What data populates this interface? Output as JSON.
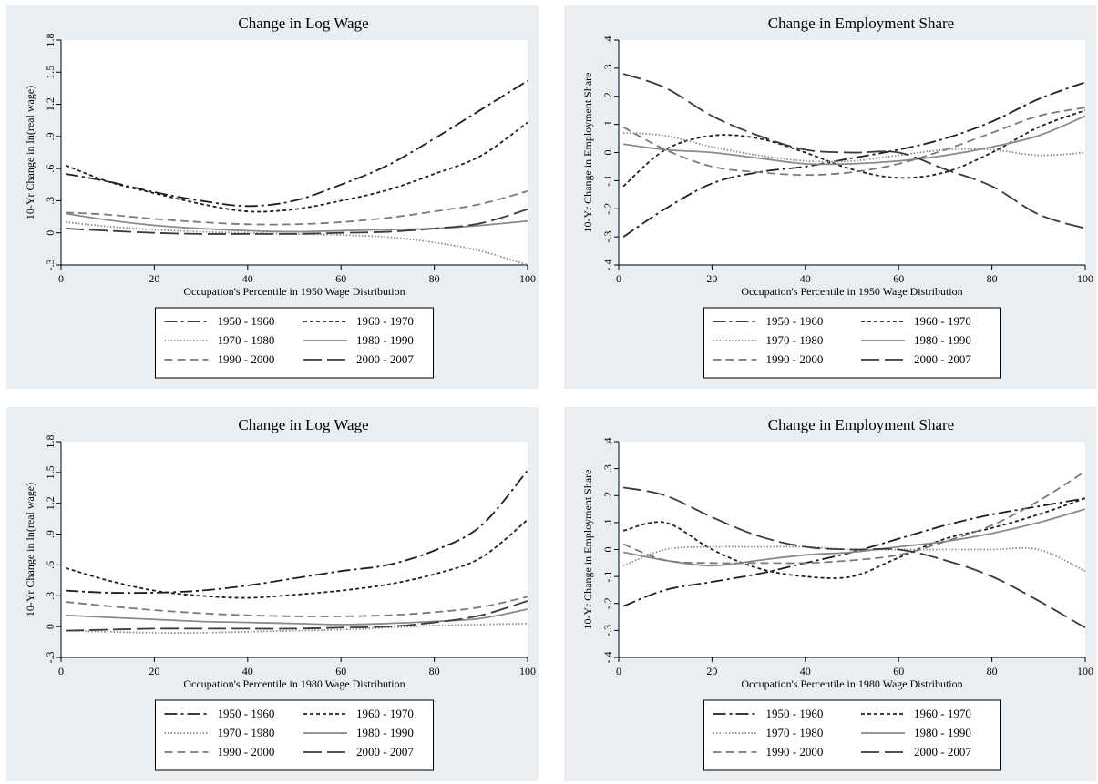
{
  "chart_data": [
    {
      "type": "line",
      "title": "Change in Log Wage",
      "xlabel": "Occupation's Percentile in 1950 Wage Distribution",
      "ylabel": "10-Yr Change in ln(real wage)",
      "xlim": [
        0,
        100
      ],
      "ylim": [
        -0.3,
        1.8
      ],
      "xticks": [
        0,
        20,
        40,
        60,
        80,
        100
      ],
      "xtick_labels": [
        "0",
        "20",
        "40",
        "60",
        "80",
        "100"
      ],
      "yticks": [
        -0.3,
        0,
        0.3,
        0.6,
        0.9,
        1.2,
        1.5,
        1.8
      ],
      "ytick_labels": [
        "-.3",
        "0",
        ".3",
        ".6",
        ".9",
        "1.2",
        "1.5",
        "1.8"
      ],
      "grid": false,
      "legend": "bottom",
      "x": [
        1,
        10,
        20,
        30,
        40,
        50,
        60,
        70,
        80,
        90,
        100
      ],
      "series": [
        {
          "name": "1950 - 1960",
          "values": [
            0.55,
            0.48,
            0.38,
            0.3,
            0.25,
            0.3,
            0.45,
            0.63,
            0.88,
            1.15,
            1.42
          ]
        },
        {
          "name": "1960 - 1970",
          "values": [
            0.63,
            0.48,
            0.37,
            0.27,
            0.2,
            0.22,
            0.3,
            0.4,
            0.55,
            0.72,
            1.03
          ]
        },
        {
          "name": "1970 - 1980",
          "values": [
            0.1,
            0.06,
            0.03,
            0.01,
            0.0,
            -0.01,
            -0.02,
            -0.04,
            -0.09,
            -0.17,
            -0.3
          ]
        },
        {
          "name": "1980 - 1990",
          "values": [
            0.18,
            0.12,
            0.07,
            0.04,
            0.02,
            0.01,
            0.02,
            0.03,
            0.04,
            0.07,
            0.11
          ]
        },
        {
          "name": "1990 - 2000",
          "values": [
            0.19,
            0.17,
            0.13,
            0.1,
            0.08,
            0.08,
            0.1,
            0.14,
            0.2,
            0.27,
            0.39
          ]
        },
        {
          "name": "2000 - 2007",
          "values": [
            0.04,
            0.02,
            0.0,
            -0.01,
            -0.01,
            -0.01,
            0.0,
            0.01,
            0.04,
            0.09,
            0.22
          ]
        }
      ]
    },
    {
      "type": "line",
      "title": "Change in Employment Share",
      "xlabel": "Occupation's Percentile in 1950 Wage Distribution",
      "ylabel": "10-Yr Change in Employment Share",
      "xlim": [
        0,
        100
      ],
      "ylim": [
        -0.4,
        0.4
      ],
      "xticks": [
        0,
        20,
        40,
        60,
        80,
        100
      ],
      "xtick_labels": [
        "0",
        "20",
        "40",
        "60",
        "80",
        "100"
      ],
      "yticks": [
        -0.4,
        -0.3,
        -0.2,
        -0.1,
        0,
        0.1,
        0.2,
        0.3,
        0.4
      ],
      "ytick_labels": [
        "-.4",
        "-.3",
        "-.2",
        "-.1",
        "0",
        ".1",
        ".2",
        ".3",
        ".4"
      ],
      "grid": false,
      "legend": "bottom",
      "x": [
        1,
        10,
        20,
        30,
        40,
        50,
        60,
        70,
        80,
        90,
        100
      ],
      "series": [
        {
          "name": "1950 - 1960",
          "values": [
            -0.3,
            -0.2,
            -0.11,
            -0.07,
            -0.05,
            -0.02,
            0.01,
            0.05,
            0.11,
            0.19,
            0.25
          ]
        },
        {
          "name": "1960 - 1970",
          "values": [
            -0.12,
            0.01,
            0.06,
            0.05,
            0.0,
            -0.06,
            -0.09,
            -0.07,
            0.0,
            0.09,
            0.15
          ]
        },
        {
          "name": "1970 - 1980",
          "values": [
            0.07,
            0.06,
            0.02,
            -0.01,
            -0.03,
            -0.03,
            -0.01,
            0.01,
            0.01,
            -0.01,
            0.0
          ]
        },
        {
          "name": "1980 - 1990",
          "values": [
            0.03,
            0.01,
            0.0,
            -0.02,
            -0.04,
            -0.04,
            -0.03,
            -0.01,
            0.02,
            0.06,
            0.13
          ]
        },
        {
          "name": "1990 - 2000",
          "values": [
            0.09,
            0.01,
            -0.05,
            -0.07,
            -0.08,
            -0.07,
            -0.04,
            0.01,
            0.07,
            0.13,
            0.16
          ]
        },
        {
          "name": "2000 - 2007",
          "values": [
            0.28,
            0.23,
            0.13,
            0.06,
            0.01,
            0.0,
            0.0,
            -0.06,
            -0.12,
            -0.22,
            -0.27
          ]
        }
      ]
    },
    {
      "type": "line",
      "title": "Change in Log Wage",
      "xlabel": "Occupation's Percentile in 1980 Wage Distribution",
      "ylabel": "10-Yr Change in ln(real wage)",
      "xlim": [
        0,
        100
      ],
      "ylim": [
        -0.3,
        1.8
      ],
      "xticks": [
        0,
        20,
        40,
        60,
        80,
        100
      ],
      "xtick_labels": [
        "0",
        "20",
        "40",
        "60",
        "80",
        "100"
      ],
      "yticks": [
        -0.3,
        0,
        0.3,
        0.6,
        0.9,
        1.2,
        1.5,
        1.8
      ],
      "ytick_labels": [
        "-.3",
        "0",
        ".3",
        ".6",
        ".9",
        "1.2",
        "1.5",
        "1.8"
      ],
      "grid": false,
      "legend": "bottom",
      "x": [
        1,
        10,
        20,
        30,
        40,
        50,
        60,
        70,
        80,
        90,
        100
      ],
      "series": [
        {
          "name": "1950 - 1960",
          "values": [
            0.35,
            0.33,
            0.33,
            0.35,
            0.4,
            0.47,
            0.54,
            0.6,
            0.74,
            0.98,
            1.52
          ]
        },
        {
          "name": "1960 - 1970",
          "values": [
            0.57,
            0.45,
            0.35,
            0.3,
            0.28,
            0.31,
            0.35,
            0.41,
            0.51,
            0.67,
            1.04
          ]
        },
        {
          "name": "1970 - 1980",
          "values": [
            -0.04,
            -0.05,
            -0.06,
            -0.06,
            -0.05,
            -0.04,
            -0.03,
            -0.01,
            0.01,
            0.02,
            0.03
          ]
        },
        {
          "name": "1980 - 1990",
          "values": [
            0.11,
            0.09,
            0.07,
            0.05,
            0.04,
            0.03,
            0.02,
            0.03,
            0.05,
            0.08,
            0.17
          ]
        },
        {
          "name": "1990 - 2000",
          "values": [
            0.24,
            0.2,
            0.16,
            0.13,
            0.11,
            0.1,
            0.1,
            0.11,
            0.14,
            0.19,
            0.29
          ]
        },
        {
          "name": "2000 - 2007",
          "values": [
            -0.04,
            -0.03,
            -0.02,
            -0.02,
            -0.02,
            -0.02,
            -0.01,
            0.0,
            0.04,
            0.11,
            0.25
          ]
        }
      ]
    },
    {
      "type": "line",
      "title": "Change in Employment Share",
      "xlabel": "Occupation's Percentile in 1980 Wage Distribution",
      "ylabel": "10-Yr Change in Employment Share",
      "xlim": [
        0,
        100
      ],
      "ylim": [
        -0.4,
        0.4
      ],
      "xticks": [
        0,
        20,
        40,
        60,
        80,
        100
      ],
      "xtick_labels": [
        "0",
        "20",
        "40",
        "60",
        "80",
        "100"
      ],
      "yticks": [
        -0.4,
        -0.3,
        -0.2,
        -0.1,
        0,
        0.1,
        0.2,
        0.3,
        0.4
      ],
      "ytick_labels": [
        "-.4",
        "-.3",
        "-.2",
        "-.1",
        "0",
        ".1",
        ".2",
        ".3",
        ".4"
      ],
      "grid": false,
      "legend": "bottom",
      "x": [
        1,
        10,
        20,
        30,
        40,
        50,
        60,
        70,
        80,
        90,
        100
      ],
      "series": [
        {
          "name": "1950 - 1960",
          "values": [
            -0.21,
            -0.15,
            -0.12,
            -0.09,
            -0.05,
            -0.01,
            0.04,
            0.09,
            0.13,
            0.16,
            0.19
          ]
        },
        {
          "name": "1960 - 1970",
          "values": [
            0.07,
            0.1,
            0.0,
            -0.07,
            -0.1,
            -0.1,
            -0.03,
            0.04,
            0.08,
            0.13,
            0.19
          ]
        },
        {
          "name": "1970 - 1980",
          "values": [
            -0.06,
            0.0,
            0.01,
            0.01,
            0.01,
            0.0,
            0.0,
            0.0,
            0.0,
            0.0,
            -0.08
          ]
        },
        {
          "name": "1980 - 1990",
          "values": [
            -0.01,
            -0.04,
            -0.06,
            -0.04,
            -0.02,
            -0.01,
            0.01,
            0.03,
            0.06,
            0.1,
            0.15
          ]
        },
        {
          "name": "1990 - 2000",
          "values": [
            0.02,
            -0.04,
            -0.05,
            -0.05,
            -0.05,
            -0.04,
            -0.02,
            0.03,
            0.09,
            0.18,
            0.29
          ]
        },
        {
          "name": "2000 - 2007",
          "values": [
            0.23,
            0.2,
            0.12,
            0.05,
            0.01,
            0.0,
            0.0,
            -0.04,
            -0.1,
            -0.19,
            -0.29
          ]
        }
      ]
    }
  ],
  "series_styles": {
    "1950 - 1960": {
      "color": "#1f1f1f",
      "dash": "14,4,3,4"
    },
    "1960 - 1970": {
      "color": "#1f1f1f",
      "dash": "4,3"
    },
    "1970 - 1980": {
      "color": "#8a8a8a",
      "dash": "1.5,2"
    },
    "1980 - 1990": {
      "color": "#8a8a8a",
      "dash": ""
    },
    "1990 - 2000": {
      "color": "#7a7a7a",
      "dash": "9,5"
    },
    "2000 - 2007": {
      "color": "#3a3a3a",
      "dash": "20,6"
    }
  },
  "colors": {
    "panel_background": "#e9eef2",
    "plot_background": "#ffffff"
  }
}
